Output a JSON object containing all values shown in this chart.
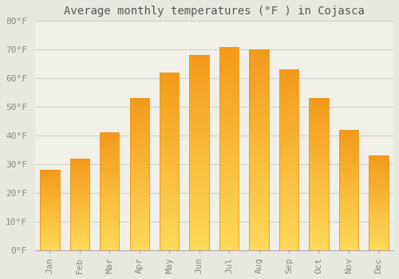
{
  "title": "Average monthly temperatures (°F ) in Cojasca",
  "months": [
    "Jan",
    "Feb",
    "Mar",
    "Apr",
    "May",
    "Jun",
    "Jul",
    "Aug",
    "Sep",
    "Oct",
    "Nov",
    "Dec"
  ],
  "values": [
    28,
    32,
    41,
    53,
    62,
    68,
    71,
    70,
    63,
    53,
    42,
    33
  ],
  "bar_color_top": "#F5A623",
  "bar_color_bottom": "#FFD966",
  "bar_edge_color": "#E8951A",
  "ylim": [
    0,
    80
  ],
  "ytick_step": 10,
  "background_color": "#e8e8e0",
  "plot_background": "#f0f0e8",
  "grid_color": "#cccccc",
  "title_fontsize": 10,
  "tick_fontsize": 8
}
